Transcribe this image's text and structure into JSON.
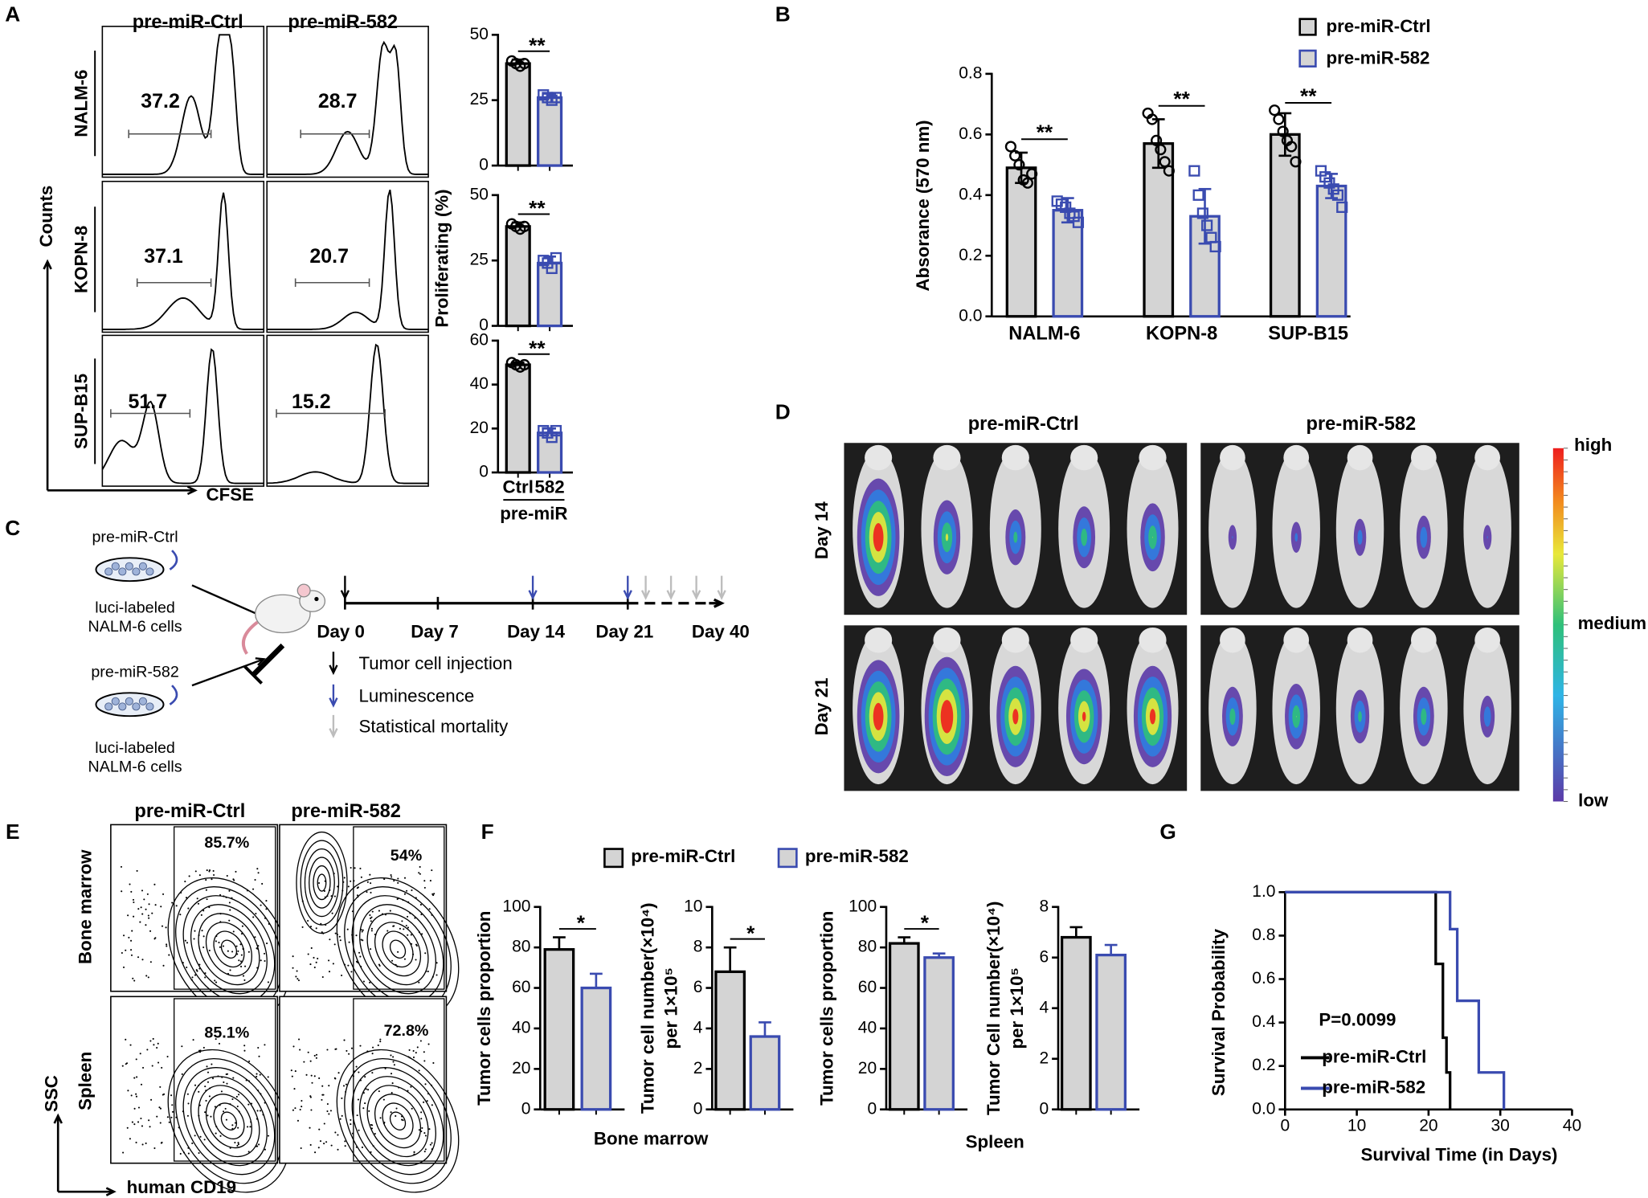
{
  "panel_labels": [
    "A",
    "B",
    "C",
    "D",
    "E",
    "F",
    "G"
  ],
  "panel_a": {
    "columns": [
      "pre-miR-Ctrl",
      "pre-miR-582"
    ],
    "rows": [
      "NALM-6",
      "KOPN-8",
      "SUP-B15"
    ],
    "gates": [
      [
        "37.2",
        "28.7"
      ],
      [
        "37.1",
        "20.7"
      ],
      [
        "51.7",
        "15.2"
      ]
    ],
    "y_label": "Counts",
    "x_label": "CFSE",
    "bar_y_label": "Proliferating (%)"
  },
  "panel_c": {
    "groups": [
      {
        "name": "pre-miR-Ctrl",
        "cells": [
          "luci-labeled",
          "NALM-6 cells"
        ]
      },
      {
        "name": "pre-miR-582",
        "cells": [
          "luci-labeled",
          "NALM-6 cells"
        ]
      }
    ],
    "days": [
      "Day 0",
      "Day 7",
      "Day 14",
      "Day 21",
      "Day 40"
    ],
    "legend": [
      {
        "text": "Tumor cell injection",
        "color": "#000000"
      },
      {
        "text": "Luminescence",
        "color": "#3a4bb0"
      },
      {
        "text": "Statistical mortality",
        "color": "#bdbdbd"
      }
    ]
  },
  "panel_d": {
    "columns": [
      "pre-miR-Ctrl",
      "pre-miR-582"
    ],
    "rows": [
      "Day 14",
      "Day 21"
    ],
    "scale": [
      "high",
      "medium",
      "low"
    ]
  },
  "panel_e": {
    "columns": [
      "pre-miR-Ctrl",
      "pre-miR-582"
    ],
    "rows": [
      "Bone marrow",
      "Spleen"
    ],
    "gates": [
      [
        "85.7%",
        "54%"
      ],
      [
        "85.1%",
        "72.8%"
      ]
    ],
    "y_label": "SSC",
    "x_label": "human CD19"
  },
  "panel_f": {
    "legend": [
      {
        "text": "pre-miR-Ctrl",
        "color": "#000000"
      },
      {
        "text": "pre-miR-582",
        "color": "#3a4bb0"
      }
    ],
    "groups": [
      "Bone marrow",
      "Spleen"
    ]
  },
  "chart_data": [
    {
      "type": "bar",
      "values": [
        39,
        26
      ],
      "errors": [
        1.5,
        1.5
      ],
      "colors": [
        "#000000",
        "#3a4bb0"
      ],
      "points": [
        [
          40,
          39,
          38,
          39
        ],
        [
          27,
          26,
          25,
          26
        ]
      ],
      "ylim": [
        0,
        50
      ],
      "yticks": [
        0,
        25,
        50
      ],
      "significance": "**"
    },
    {
      "type": "bar",
      "values": [
        38,
        24
      ],
      "errors": [
        1.5,
        2.5
      ],
      "colors": [
        "#000000",
        "#3a4bb0"
      ],
      "points": [
        [
          39,
          38,
          37,
          38
        ],
        [
          25,
          24,
          22,
          26
        ]
      ],
      "ylim": [
        0,
        50
      ],
      "yticks": [
        0,
        25,
        50
      ],
      "significance": "**"
    },
    {
      "type": "bar",
      "values": [
        49,
        18
      ],
      "errors": [
        1,
        2
      ],
      "colors": [
        "#000000",
        "#3a4bb0"
      ],
      "points": [
        [
          50,
          49,
          48,
          49
        ],
        [
          19,
          18,
          16,
          19
        ]
      ],
      "ylim": [
        0,
        60
      ],
      "yticks": [
        0,
        20,
        40,
        60
      ],
      "significance": "**",
      "categories": [
        "Ctrl",
        "582"
      ],
      "x_label": "pre-miR"
    },
    {
      "type": "grouped_bar",
      "categories": [
        "NALM-6",
        "KOPN-8",
        "SUP-B15"
      ],
      "y_label": "Absorance (570 nm)",
      "ylim": [
        0,
        0.8
      ],
      "yticks": [
        {
          "value": 0,
          "label": "0.0"
        },
        0.2,
        0.4,
        0.6,
        0.8
      ],
      "significance": [
        "**",
        "**",
        "**"
      ],
      "series": [
        {
          "name": "pre-miR-Ctrl",
          "color": "#000000",
          "values": [
            0.49,
            0.57,
            0.6
          ],
          "errors": [
            0.05,
            0.08,
            0.07
          ],
          "points": [
            [
              0.56,
              0.53,
              0.5,
              0.45,
              0.44,
              0.47
            ],
            [
              0.67,
              0.65,
              0.58,
              0.55,
              0.51,
              0.48
            ],
            [
              0.68,
              0.65,
              0.61,
              0.58,
              0.56,
              0.51
            ]
          ]
        },
        {
          "name": "pre-miR-582",
          "color": "#3a4bb0",
          "values": [
            0.35,
            0.33,
            0.43
          ],
          "errors": [
            0.04,
            0.09,
            0.04
          ],
          "points": [
            [
              0.38,
              0.37,
              0.36,
              0.34,
              0.33,
              0.31
            ],
            [
              0.48,
              0.4,
              0.34,
              0.3,
              0.26,
              0.23
            ],
            [
              0.48,
              0.46,
              0.44,
              0.42,
              0.4,
              0.36
            ]
          ]
        }
      ]
    },
    {
      "type": "bar",
      "values": [
        79,
        60
      ],
      "errors": [
        6,
        7
      ],
      "colors": [
        "#000000",
        "#3a4bb0"
      ],
      "ylim": [
        0,
        100
      ],
      "yticks": [
        0,
        20,
        40,
        60,
        80,
        100
      ],
      "significance": "*",
      "y_label": [
        "Tumor cells proportion"
      ]
    },
    {
      "type": "bar",
      "values": [
        6.8,
        3.6
      ],
      "errors": [
        1.2,
        0.7
      ],
      "colors": [
        "#000000",
        "#3a4bb0"
      ],
      "ylim": [
        0,
        10
      ],
      "yticks": [
        0,
        2,
        4,
        6,
        8,
        10
      ],
      "significance": "*",
      "y_label": [
        "Tumor cell number(×10⁴)",
        "per 1×10⁵"
      ]
    },
    {
      "type": "bar",
      "values": [
        82,
        75
      ],
      "errors": [
        3,
        2
      ],
      "colors": [
        "#000000",
        "#3a4bb0"
      ],
      "ylim": [
        0,
        100
      ],
      "yticks": [
        0,
        20,
        40,
        60,
        80,
        100
      ],
      "significance": "*",
      "y_label": [
        "Tumor cells proportion"
      ]
    },
    {
      "type": "bar",
      "values": [
        6.8,
        6.1
      ],
      "errors": [
        0.4,
        0.4
      ],
      "colors": [
        "#000000",
        "#3a4bb0"
      ],
      "ylim": [
        0,
        8
      ],
      "yticks": [
        0,
        2,
        4,
        6,
        8
      ],
      "y_label": [
        "Tumor Cell number(×10⁴)",
        "per 1×10⁵"
      ]
    },
    {
      "type": "line",
      "x_label": "Survival Time (in Days)",
      "y_label": "Survival Probability",
      "annotation": "P=0.0099",
      "xlim": [
        0,
        40
      ],
      "xticks": [
        0,
        10,
        20,
        30,
        40
      ],
      "ylim": [
        0,
        1
      ],
      "yticks": [
        {
          "value": 0,
          "label": "0.0"
        },
        0.2,
        0.4,
        0.6,
        0.8,
        {
          "value": 1,
          "label": "1.0"
        }
      ],
      "series": [
        {
          "name": "pre-miR-Ctrl",
          "color": "#000000",
          "x": [
            0,
            21,
            21,
            22,
            22,
            22.5,
            22.5,
            23,
            23
          ],
          "y": [
            1,
            1,
            0.67,
            0.67,
            0.33,
            0.33,
            0.17,
            0.17,
            0
          ]
        },
        {
          "name": "pre-miR-582",
          "color": "#3a4bb0",
          "x": [
            0,
            23,
            23,
            24,
            24,
            27,
            27,
            30.5,
            30.5
          ],
          "y": [
            1,
            1,
            0.83,
            0.83,
            0.5,
            0.5,
            0.17,
            0.17,
            0
          ]
        }
      ]
    }
  ]
}
